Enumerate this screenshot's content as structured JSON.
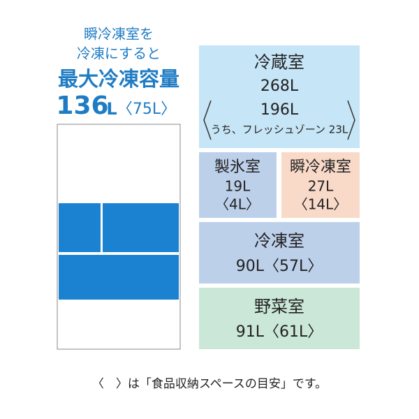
{
  "left": {
    "intro": [
      "瞬冷凍室を",
      "冷凍にすると"
    ],
    "headline": "最大冷凍容量",
    "capacity_number": "136",
    "capacity_unit": "L",
    "capacity_space": "〈75L〉"
  },
  "compartments": [
    {
      "name": "冷蔵室",
      "lines": [
        "268L",
        "196L",
        "うち、フレッシュゾーン 23L"
      ]
    },
    {
      "name": "製氷室",
      "lines": [
        "19L",
        "〈4L〉"
      ]
    },
    {
      "name": "瞬冷凍室",
      "lines": [
        "27L",
        "〈14L〉"
      ]
    },
    {
      "name": "冷凍室",
      "lines": [
        "90L〈57L〉"
      ]
    },
    {
      "name": "野菜室",
      "lines": [
        "91L〈61L〉"
      ]
    }
  ],
  "footnote": "〈　〉は「食品収納スペースの目安」です。"
}
